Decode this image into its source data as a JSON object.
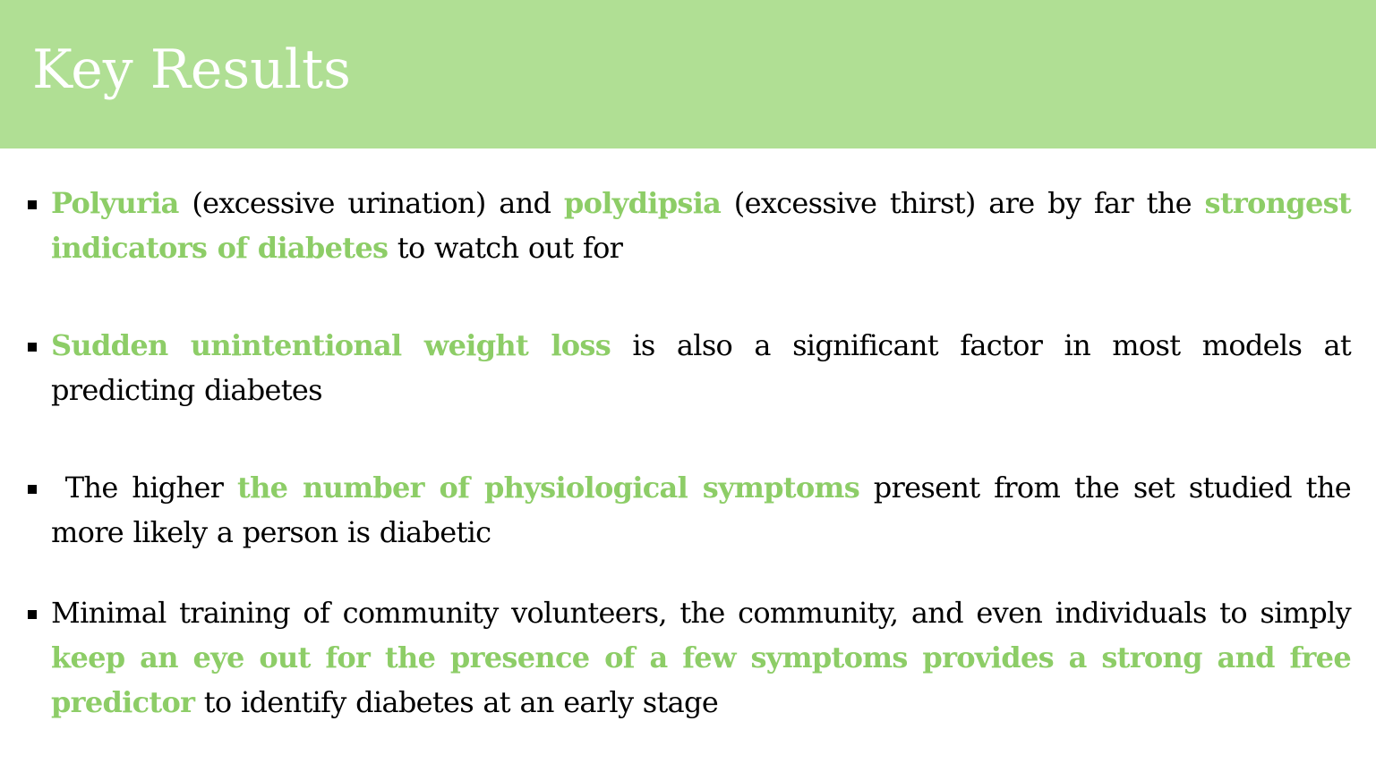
{
  "header": {
    "title": "Key Results"
  },
  "colors": {
    "header_background": "#b0df94",
    "title_text": "#ffffff",
    "highlight": "#8dcd67",
    "body_text": "#000000"
  },
  "bullets": [
    {
      "segments": [
        {
          "text": "Polyuria",
          "highlight": true
        },
        {
          "text": " (excessive urination) and ",
          "highlight": false
        },
        {
          "text": "polydipsia",
          "highlight": true
        },
        {
          "text": " (excessive thirst) are by far the ",
          "highlight": false
        },
        {
          "text": "strongest indicators of diabetes",
          "highlight": true
        },
        {
          "text": " to watch out for",
          "highlight": false
        }
      ]
    },
    {
      "segments": [
        {
          "text": "Sudden unintentional weight loss",
          "highlight": true
        },
        {
          "text": " is also a significant factor in most models at predicting diabetes",
          "highlight": false
        }
      ]
    },
    {
      "segments": [
        {
          "text": "The higher ",
          "highlight": false
        },
        {
          "text": "the number of physiological symptoms",
          "highlight": true
        },
        {
          "text": " present from the set studied the more likely a person is diabetic",
          "highlight": false
        }
      ]
    },
    {
      "segments": [
        {
          "text": "Minimal training of community volunteers, the community, and even individuals to simply ",
          "highlight": false
        },
        {
          "text": "keep an eye out for the presence of a few symptoms provides a strong and free predictor",
          "highlight": true
        },
        {
          "text": " to identify diabetes at an early stage",
          "highlight": false
        }
      ]
    }
  ]
}
